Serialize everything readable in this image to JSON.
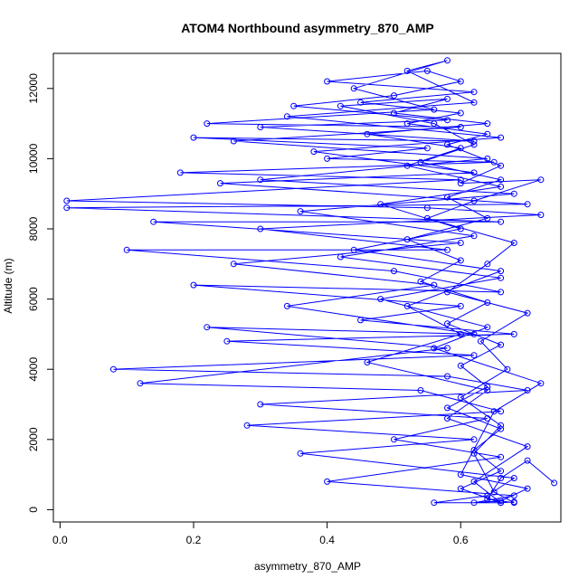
{
  "chart_data": {
    "type": "line",
    "title": "ATOM4 Northbound asymmetry_870_AMP",
    "xlabel": "asymmetry_870_AMP",
    "ylabel": "Altitude (m)",
    "xlim": [
      -0.01,
      0.75
    ],
    "ylim": [
      -350,
      13000
    ],
    "x_ticks": [
      0.0,
      0.2,
      0.4,
      0.6
    ],
    "x_tick_labels": [
      "0.0",
      "0.2",
      "0.4",
      "0.6"
    ],
    "y_ticks": [
      0,
      2000,
      4000,
      6000,
      8000,
      10000,
      12000
    ],
    "y_tick_labels": [
      "0",
      "2000",
      "4000",
      "6000",
      "8000",
      "10000",
      "12000"
    ],
    "grid": false,
    "legend": "none",
    "markers": "open-circle",
    "series_color": "#0000ff",
    "series": [
      {
        "points": [
          [
            0.74,
            760
          ],
          [
            0.7,
            1400
          ],
          [
            0.66,
            900
          ],
          [
            0.64,
            300
          ],
          [
            0.68,
            200
          ],
          [
            0.65,
            500
          ],
          [
            0.62,
            1600
          ],
          [
            0.66,
            2400
          ],
          [
            0.6,
            3200
          ],
          [
            0.67,
            4000
          ],
          [
            0.63,
            4800
          ],
          [
            0.7,
            5600
          ],
          [
            0.58,
            6200
          ],
          [
            0.64,
            7000
          ],
          [
            0.68,
            7600
          ],
          [
            0.55,
            8300
          ],
          [
            0.62,
            8800
          ],
          [
            0.72,
            9400
          ],
          [
            0.6,
            9300
          ],
          [
            0.66,
            9800
          ],
          [
            0.58,
            10400
          ],
          [
            0.64,
            10700
          ],
          [
            0.52,
            11000
          ],
          [
            0.6,
            11300
          ],
          [
            0.45,
            11600
          ],
          [
            0.62,
            11900
          ],
          [
            0.4,
            12200
          ],
          [
            0.55,
            12500
          ],
          [
            0.6,
            12200
          ],
          [
            0.5,
            11800
          ],
          [
            0.35,
            11500
          ],
          [
            0.58,
            11100
          ],
          [
            0.3,
            10900
          ],
          [
            0.62,
            10500
          ],
          [
            0.2,
            10600
          ],
          [
            0.55,
            10300
          ],
          [
            0.4,
            10000
          ],
          [
            0.65,
            9900
          ],
          [
            0.18,
            9600
          ],
          [
            0.6,
            9400
          ],
          [
            0.01,
            8800
          ],
          [
            0.55,
            8600
          ],
          [
            0.72,
            8400
          ],
          [
            0.3,
            8000
          ],
          [
            0.58,
            7400
          ],
          [
            0.1,
            7400
          ],
          [
            0.5,
            6800
          ],
          [
            0.66,
            6200
          ],
          [
            0.2,
            6400
          ],
          [
            0.6,
            5800
          ],
          [
            0.45,
            5400
          ],
          [
            0.68,
            5000
          ],
          [
            0.25,
            4800
          ],
          [
            0.62,
            4400
          ],
          [
            0.08,
            4000
          ],
          [
            0.58,
            3800
          ],
          [
            0.7,
            3400
          ],
          [
            0.3,
            3000
          ],
          [
            0.64,
            2600
          ],
          [
            0.5,
            2000
          ],
          [
            0.66,
            1500
          ],
          [
            0.4,
            800
          ],
          [
            0.68,
            400
          ],
          [
            0.62,
            200
          ],
          [
            0.66,
            250
          ],
          [
            0.7,
            600
          ],
          [
            0.6,
            1000
          ],
          [
            0.65,
            2800
          ],
          [
            0.72,
            3600
          ],
          [
            0.56,
            4600
          ],
          [
            0.64,
            5200
          ],
          [
            0.48,
            6000
          ],
          [
            0.66,
            6600
          ],
          [
            0.42,
            7200
          ],
          [
            0.62,
            7800
          ],
          [
            0.36,
            8500
          ],
          [
            0.68,
            9000
          ],
          [
            0.3,
            9400
          ],
          [
            0.64,
            10000
          ],
          [
            0.26,
            10500
          ],
          [
            0.6,
            10900
          ],
          [
            0.22,
            11000
          ],
          [
            0.56,
            11400
          ],
          [
            0.44,
            12000
          ],
          [
            0.58,
            12800
          ],
          [
            0.52,
            12500
          ],
          [
            0.62,
            11600
          ],
          [
            0.34,
            11200
          ],
          [
            0.66,
            10600
          ],
          [
            0.38,
            10200
          ],
          [
            0.62,
            9600
          ],
          [
            0.24,
            9300
          ],
          [
            0.7,
            8700
          ],
          [
            0.01,
            8600
          ],
          [
            0.66,
            8200
          ],
          [
            0.14,
            8200
          ],
          [
            0.6,
            7600
          ],
          [
            0.26,
            7000
          ],
          [
            0.56,
            6400
          ],
          [
            0.34,
            5800
          ],
          [
            0.62,
            5000
          ],
          [
            0.22,
            5200
          ],
          [
            0.58,
            4600
          ],
          [
            0.12,
            3600
          ],
          [
            0.54,
            3400
          ],
          [
            0.66,
            2800
          ],
          [
            0.28,
            2400
          ],
          [
            0.62,
            2000
          ],
          [
            0.36,
            1600
          ],
          [
            0.68,
            900
          ],
          [
            0.64,
            400
          ],
          [
            0.56,
            200
          ],
          [
            0.66,
            200
          ],
          [
            0.62,
            800
          ],
          [
            0.7,
            1800
          ],
          [
            0.58,
            2600
          ],
          [
            0.64,
            3400
          ],
          [
            0.46,
            4200
          ],
          [
            0.6,
            5000
          ],
          [
            0.52,
            5800
          ],
          [
            0.66,
            6800
          ],
          [
            0.44,
            7400
          ],
          [
            0.6,
            8000
          ],
          [
            0.48,
            8700
          ],
          [
            0.66,
            9200
          ],
          [
            0.52,
            9800
          ],
          [
            0.6,
            10300
          ],
          [
            0.46,
            10700
          ],
          [
            0.64,
            11000
          ],
          [
            0.5,
            11300
          ],
          [
            0.58,
            11700
          ],
          [
            0.42,
            11500
          ],
          [
            0.56,
            11000
          ],
          [
            0.62,
            10400
          ],
          [
            0.54,
            9900
          ],
          [
            0.66,
            9400
          ],
          [
            0.58,
            8900
          ],
          [
            0.64,
            8300
          ],
          [
            0.52,
            7700
          ],
          [
            0.6,
            7100
          ],
          [
            0.54,
            6500
          ],
          [
            0.64,
            5900
          ],
          [
            0.58,
            5300
          ],
          [
            0.66,
            4700
          ],
          [
            0.6,
            4100
          ],
          [
            0.64,
            3500
          ],
          [
            0.58,
            2900
          ],
          [
            0.66,
            2300
          ],
          [
            0.62,
            1700
          ],
          [
            0.66,
            1100
          ],
          [
            0.6,
            600
          ],
          [
            0.66,
            200
          ],
          [
            0.68,
            220
          ]
        ]
      }
    ]
  }
}
